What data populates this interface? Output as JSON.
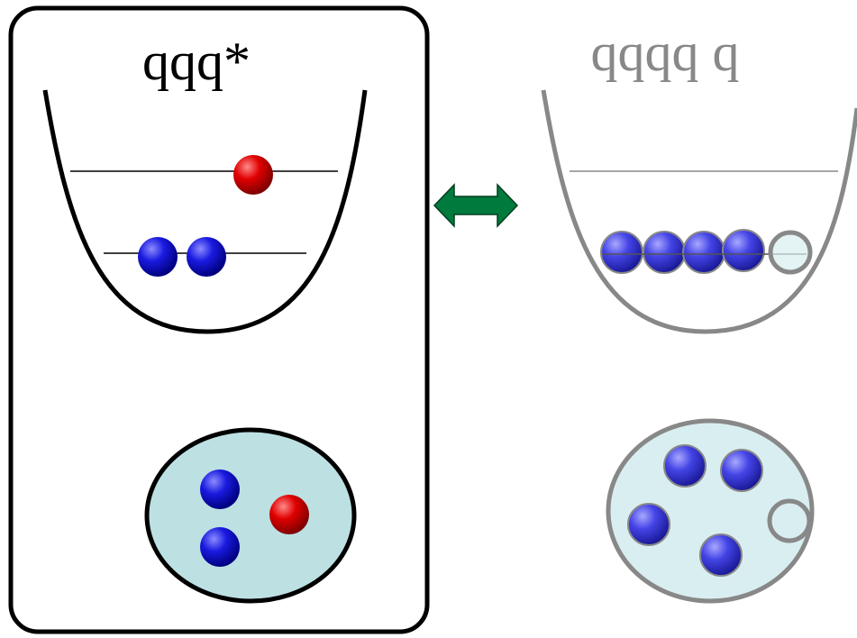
{
  "labels": {
    "left": "qqq*",
    "right": "qqqq q"
  }
}
